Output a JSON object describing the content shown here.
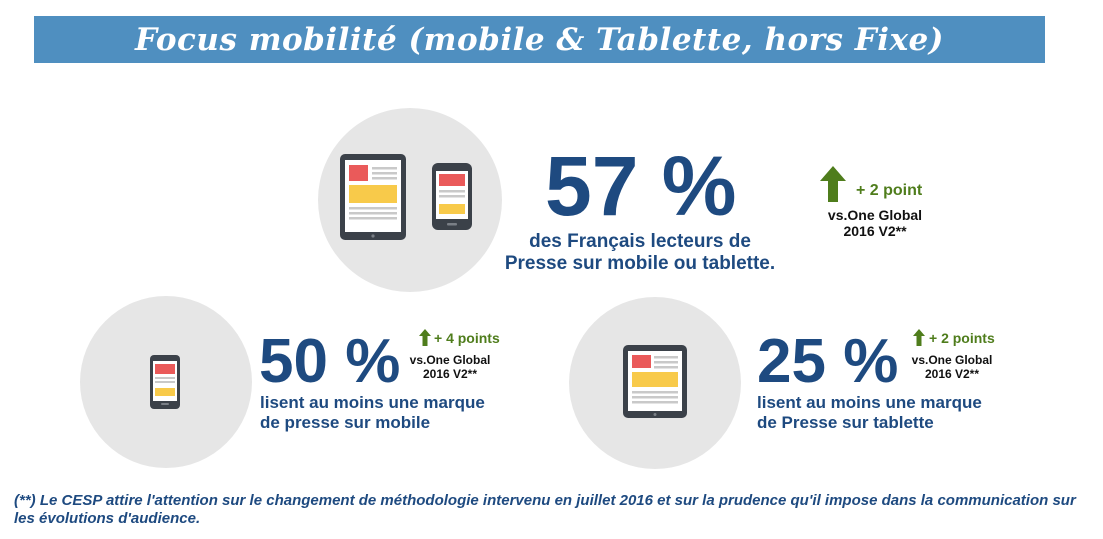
{
  "title": "Focus mobilité (mobile & Tablette, hors Fixe)",
  "main_stat": {
    "value": "57 %",
    "line1": "des Français lecteurs de",
    "line2": "Presse sur mobile ou tablette.",
    "delta": "+ 2 point",
    "vs_line1": "vs.One Global",
    "vs_line2": "2016 V2**",
    "icons": [
      "tablet-icon",
      "smartphone-icon",
      "arrow-up-icon"
    ]
  },
  "mobile_stat": {
    "value": "50 %",
    "line1": "lisent au moins une marque",
    "line2": "de presse sur mobile",
    "delta": "+ 4 points",
    "vs_line1": "vs.One Global",
    "vs_line2": "2016 V2**",
    "icons": [
      "smartphone-icon",
      "arrow-up-icon"
    ]
  },
  "tablet_stat": {
    "value": "25 %",
    "line1": "lisent au moins une marque",
    "line2": "de Presse sur tablette",
    "delta": "+ 2 points",
    "vs_line1": "vs.One Global",
    "vs_line2": "2016 V2**",
    "icons": [
      "tablet-icon",
      "arrow-up-icon"
    ]
  },
  "footnote": "(**) Le CESP attire l'attention sur le changement de méthodologie intervenu en juillet 2016 et sur la prudence qu'il impose dans la communication sur les évolutions d'audience.",
  "colors": {
    "banner": "#4f8fc0",
    "stat_blue": "#1e4a80",
    "delta_green": "#4f7d1c",
    "circle_grey": "#e6e6e6",
    "device_dark": "#3b4149",
    "screen_red": "#ea5a5a",
    "screen_yellow": "#f8ca4a"
  }
}
